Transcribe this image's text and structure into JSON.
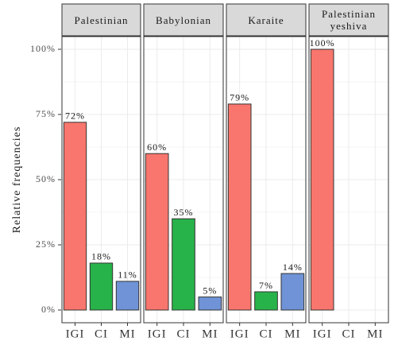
{
  "chart_data": {
    "type": "bar",
    "y_label": "Relative frequencies",
    "categories": [
      "IGI",
      "CI",
      "MI"
    ],
    "colors": [
      "#f8766d",
      "#27b34a",
      "#6f93d6"
    ],
    "ylim": [
      0,
      100
    ],
    "yticks": [
      {
        "value": 0,
        "label": "0%"
      },
      {
        "value": 25,
        "label": "25%"
      },
      {
        "value": 50,
        "label": "50%"
      },
      {
        "value": 75,
        "label": "75%"
      },
      {
        "value": 100,
        "label": "100%"
      }
    ],
    "grid": true,
    "facets": [
      {
        "title": "Palestinian",
        "values": [
          72,
          18,
          11
        ],
        "value_labels": [
          "72%",
          "18%",
          "11%"
        ]
      },
      {
        "title": "Babylonian",
        "values": [
          60,
          35,
          5
        ],
        "value_labels": [
          "60%",
          "35%",
          "5%"
        ]
      },
      {
        "title": "Karaite",
        "values": [
          79,
          7,
          14
        ],
        "value_labels": [
          "79%",
          "7%",
          "14%"
        ]
      },
      {
        "title": "Palestinian yeshiva",
        "values": [
          100,
          null,
          null
        ],
        "value_labels": [
          "100%",
          null,
          null
        ]
      }
    ]
  }
}
